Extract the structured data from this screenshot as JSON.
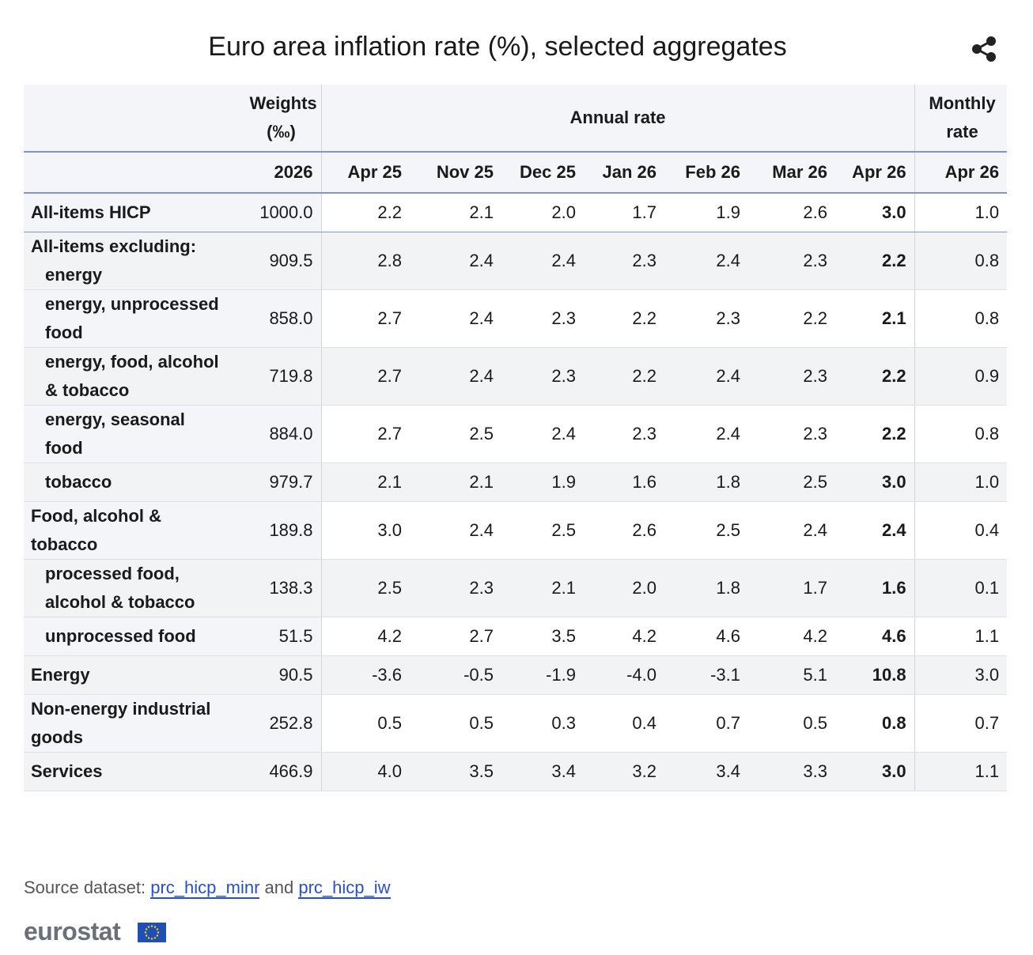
{
  "header": {
    "title": "Euro area inflation rate (%), selected aggregates"
  },
  "table": {
    "group_headers": [
      "Weights (‰)",
      "Annual rate",
      "Monthly rate"
    ],
    "columns": [
      "2026",
      "Apr 25",
      "Nov 25",
      "Dec 25",
      "Jan 26",
      "Feb 26",
      "Mar 26",
      "Apr 26",
      "Apr 26"
    ],
    "excluding_heading": "All-items excluding:",
    "rows": [
      [
        "All-items HICP",
        "1000.0",
        "2.2",
        "2.1",
        "2.0",
        "1.7",
        "1.9",
        "2.6",
        "3.0",
        "1.0"
      ],
      [
        "energy",
        "909.5",
        "2.8",
        "2.4",
        "2.4",
        "2.3",
        "2.4",
        "2.3",
        "2.2",
        "0.8"
      ],
      [
        "energy, unprocessed food",
        "858.0",
        "2.7",
        "2.4",
        "2.3",
        "2.2",
        "2.3",
        "2.2",
        "2.1",
        "0.8"
      ],
      [
        "energy, food, alcohol & tobacco",
        "719.8",
        "2.7",
        "2.4",
        "2.3",
        "2.2",
        "2.4",
        "2.3",
        "2.2",
        "0.9"
      ],
      [
        "energy, seasonal food",
        "884.0",
        "2.7",
        "2.5",
        "2.4",
        "2.3",
        "2.4",
        "2.3",
        "2.2",
        "0.8"
      ],
      [
        "tobacco",
        "979.7",
        "2.1",
        "2.1",
        "1.9",
        "1.6",
        "1.8",
        "2.5",
        "3.0",
        "1.0"
      ],
      [
        "Food, alcohol & tobacco",
        "189.8",
        "3.0",
        "2.4",
        "2.5",
        "2.6",
        "2.5",
        "2.4",
        "2.4",
        "0.4"
      ],
      [
        "processed food, alcohol & tobacco",
        "138.3",
        "2.5",
        "2.3",
        "2.1",
        "2.0",
        "1.8",
        "1.7",
        "1.6",
        "0.1"
      ],
      [
        "unprocessed food",
        "51.5",
        "4.2",
        "2.7",
        "3.5",
        "4.2",
        "4.6",
        "4.2",
        "4.6",
        "1.1"
      ],
      [
        "Energy",
        "90.5",
        "-3.6",
        "-0.5",
        "-1.9",
        "-4.0",
        "-3.1",
        "5.1",
        "10.8",
        "3.0"
      ],
      [
        "Non-energy industrial goods",
        "252.8",
        "0.5",
        "0.5",
        "0.3",
        "0.4",
        "0.7",
        "0.5",
        "0.8",
        "0.7"
      ],
      [
        "Services",
        "466.9",
        "4.0",
        "3.5",
        "3.4",
        "3.2",
        "3.4",
        "3.3",
        "3.0",
        "1.1"
      ]
    ]
  },
  "footer": {
    "source_label": "Source dataset:",
    "links": [
      "prc_hicp_minr",
      "prc_hicp_iw"
    ],
    "connector": "and",
    "logo": "eurostat"
  }
}
